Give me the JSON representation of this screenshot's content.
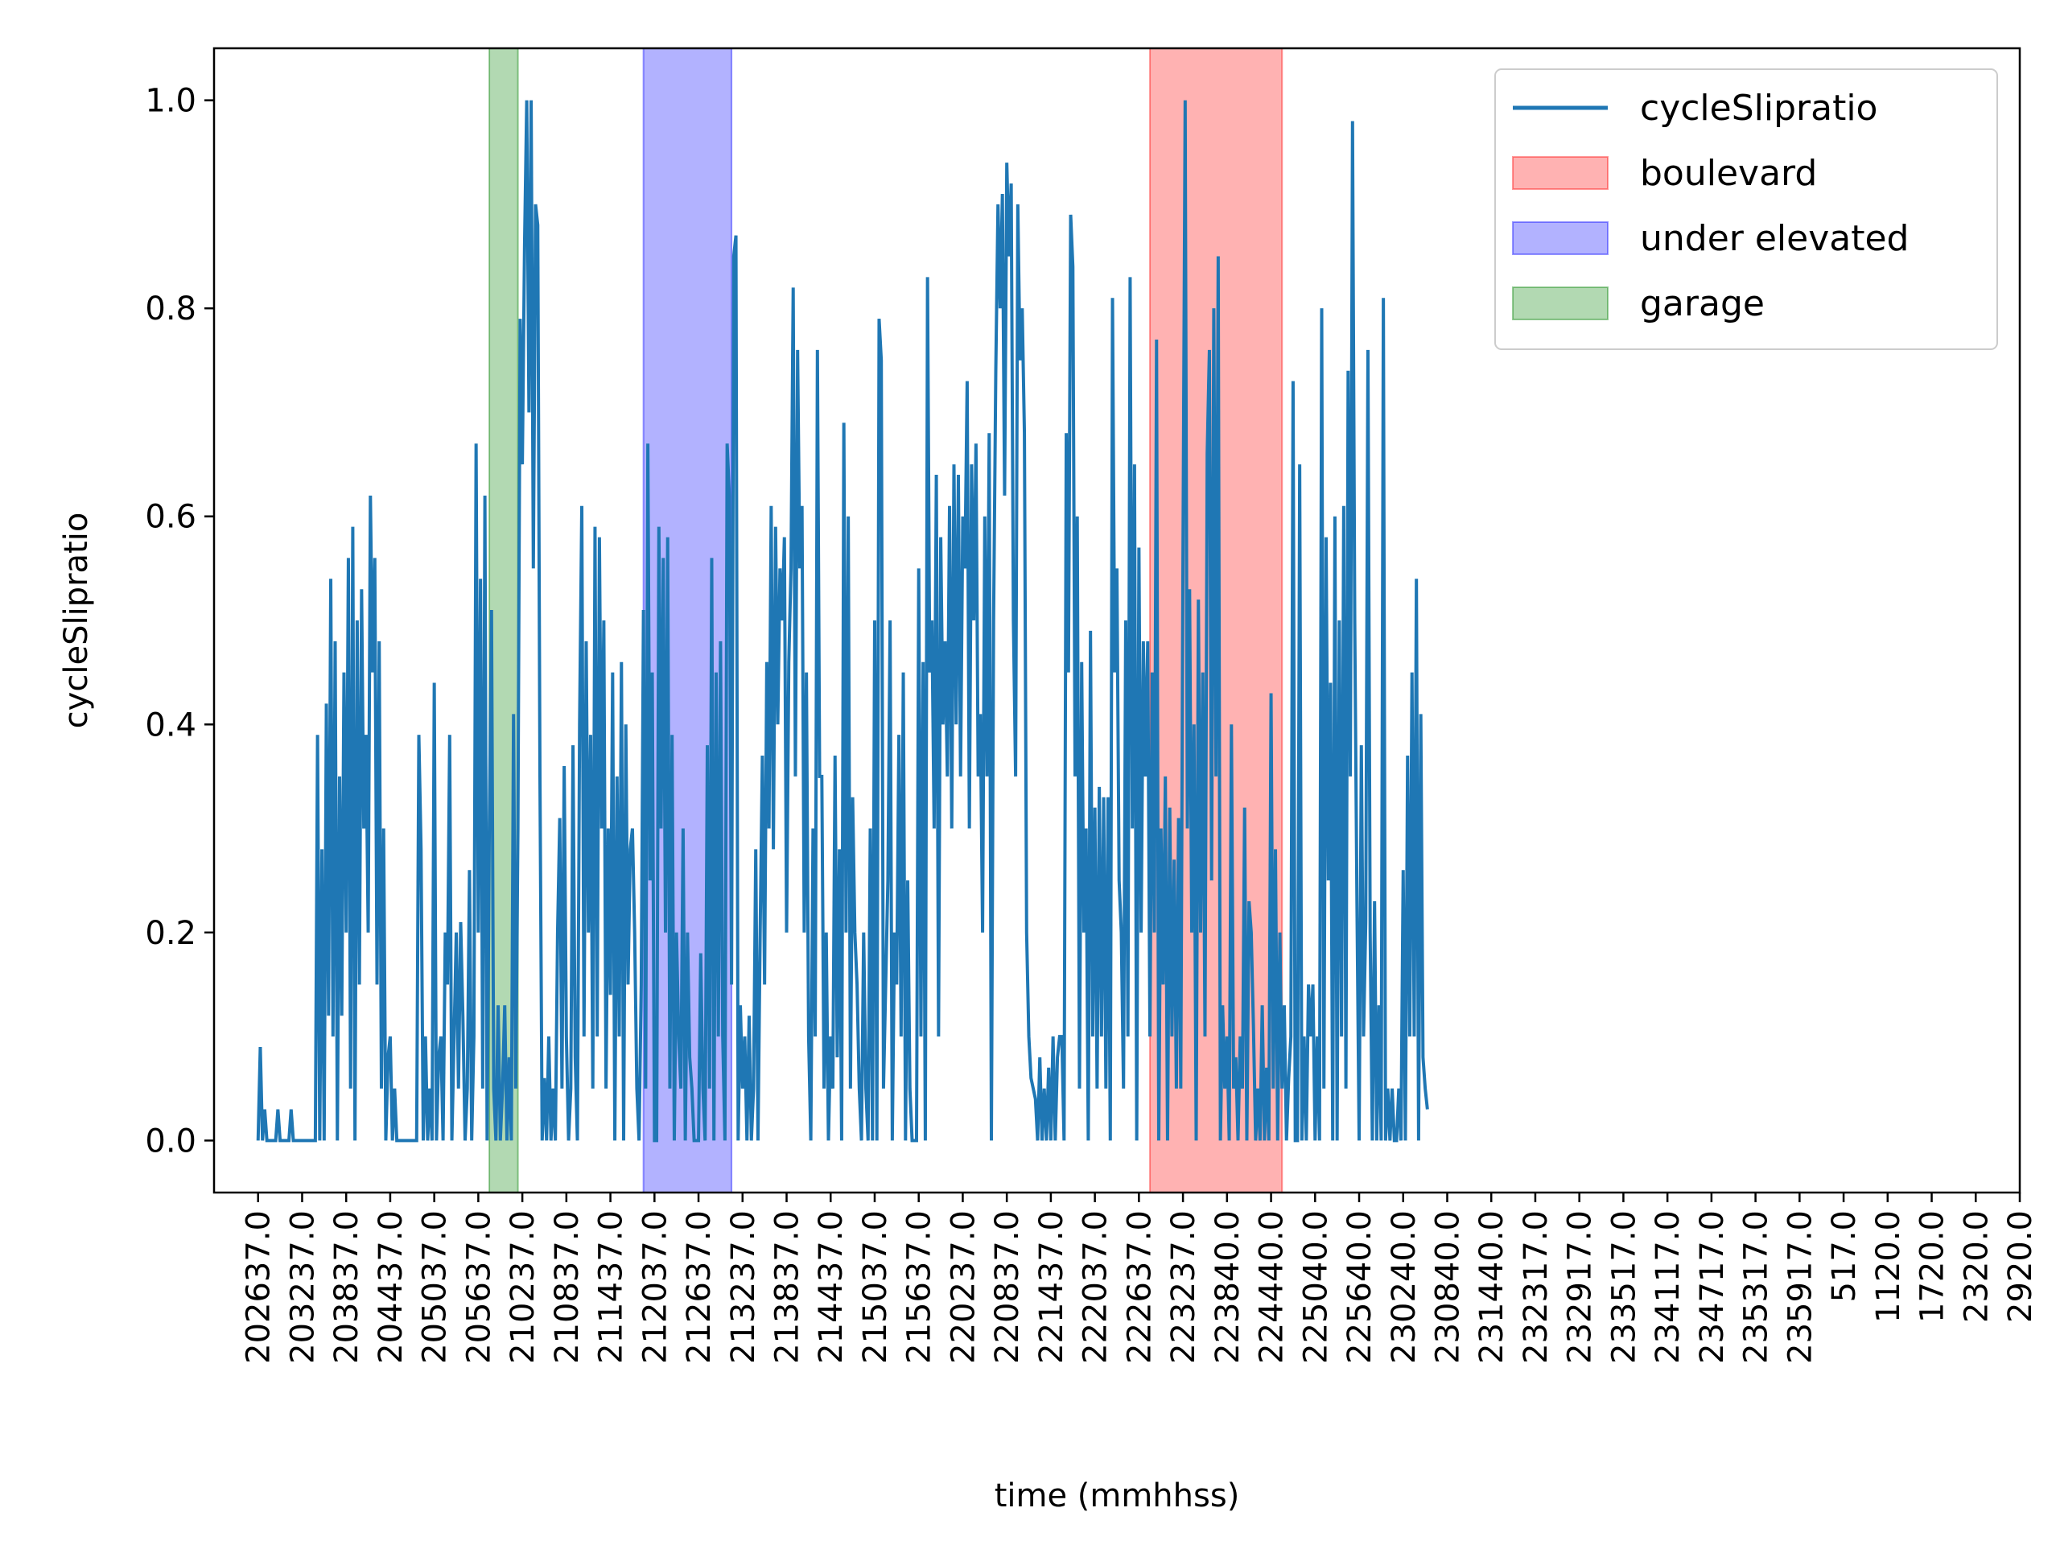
{
  "chart_data": {
    "type": "line",
    "title": "",
    "xlabel": "time (mmhhss)",
    "ylabel": "cycleSlipratio",
    "ylim": [
      -0.05,
      1.05
    ],
    "yticks": [
      "0.0",
      "0.2",
      "0.4",
      "0.6",
      "0.8",
      "1.0"
    ],
    "ytick_values": [
      0.0,
      0.2,
      0.4,
      0.6,
      0.8,
      1.0
    ],
    "xlim": [
      -2,
      80
    ],
    "xtick_labels": [
      "202637.0",
      "203237.0",
      "203837.0",
      "204437.0",
      "205037.0",
      "205637.0",
      "210237.0",
      "210837.0",
      "211437.0",
      "212037.0",
      "212637.0",
      "213237.0",
      "213837.0",
      "214437.0",
      "215037.0",
      "215637.0",
      "220237.0",
      "220837.0",
      "221437.0",
      "222037.0",
      "222637.0",
      "223237.0",
      "223840.0",
      "224440.0",
      "225040.0",
      "225640.0",
      "230240.0",
      "230840.0",
      "231440.0",
      "232317.0",
      "232917.0",
      "233517.0",
      "234117.0",
      "234717.0",
      "235317.0",
      "235917.0",
      "517.0",
      "1120.0",
      "1720.0",
      "2320.0",
      "2920.0"
    ],
    "grid": false,
    "legend_position": "upper right",
    "series": [
      {
        "name": "cycleSlipratio",
        "color": "#1f77b4",
        "x_start": 0.0,
        "x_step": 0.1,
        "values": [
          0,
          0.09,
          0.0,
          0.03,
          0.0,
          0.0,
          0.0,
          0.0,
          0.0,
          0.03,
          0.0,
          0.0,
          0.0,
          0.0,
          0.0,
          0.03,
          0.0,
          0.0,
          0.0,
          0.0,
          0.0,
          0.0,
          0.0,
          0.0,
          0.0,
          0.0,
          0.0,
          0.39,
          0.0,
          0.28,
          0.0,
          0.42,
          0.12,
          0.54,
          0.1,
          0.48,
          0.0,
          0.35,
          0.12,
          0.45,
          0.2,
          0.56,
          0.05,
          0.59,
          0.0,
          0.5,
          0.15,
          0.53,
          0.3,
          0.39,
          0.2,
          0.62,
          0.45,
          0.56,
          0.15,
          0.48,
          0.05,
          0.3,
          0.0,
          0.08,
          0.1,
          0.0,
          0.05,
          0.0,
          0.0,
          0.0,
          0.0,
          0.0,
          0.0,
          0.0,
          0.0,
          0.0,
          0.0,
          0.39,
          0.28,
          0.0,
          0.1,
          0.0,
          0.05,
          0.0,
          0.44,
          0.0,
          0.08,
          0.1,
          0.0,
          0.2,
          0.15,
          0.39,
          0.0,
          0.1,
          0.2,
          0.05,
          0.21,
          0.12,
          0.0,
          0.05,
          0.26,
          0.0,
          0.1,
          0.67,
          0.2,
          0.54,
          0.05,
          0.62,
          0.0,
          0.3,
          0.51,
          0.05,
          0.0,
          0.13,
          0.0,
          0.05,
          0.13,
          0.0,
          0.08,
          0.0,
          0.41,
          0.05,
          0.3,
          0.79,
          0.65,
          0.86,
          1.0,
          0.7,
          1.0,
          0.55,
          0.9,
          0.88,
          0.35,
          0.0,
          0.06,
          0.0,
          0.1,
          0.0,
          0.05,
          0.0,
          0.2,
          0.31,
          0.05,
          0.36,
          0.1,
          0.0,
          0.05,
          0.38,
          0.08,
          0.0,
          0.4,
          0.61,
          0.1,
          0.48,
          0.2,
          0.39,
          0.05,
          0.59,
          0.1,
          0.58,
          0.3,
          0.5,
          0.05,
          0.3,
          0.14,
          0.45,
          0.0,
          0.35,
          0.1,
          0.46,
          0.0,
          0.4,
          0.15,
          0.28,
          0.3,
          0.2,
          0.05,
          0.0,
          0.15,
          0.51,
          0.05,
          0.67,
          0.25,
          0.45,
          0.0,
          0.0,
          0.59,
          0.3,
          0.56,
          0.2,
          0.58,
          0.05,
          0.39,
          0.0,
          0.2,
          0.1,
          0.05,
          0.3,
          0.0,
          0.2,
          0.08,
          0.05,
          0.0,
          0.0,
          0.0,
          0.18,
          0.05,
          0.0,
          0.38,
          0.05,
          0.56,
          0.0,
          0.45,
          0.1,
          0.48,
          0.1,
          0.0,
          0.67,
          0.62,
          0.15,
          0.85,
          0.87,
          0.0,
          0.13,
          0.05,
          0.1,
          0.0,
          0.12,
          0.0,
          0.05,
          0.28,
          0.0,
          0.2,
          0.37,
          0.15,
          0.46,
          0.3,
          0.61,
          0.28,
          0.59,
          0.4,
          0.55,
          0.5,
          0.58,
          0.2,
          0.46,
          0.55,
          0.82,
          0.35,
          0.76,
          0.55,
          0.61,
          0.2,
          0.45,
          0.1,
          0.0,
          0.3,
          0.1,
          0.76,
          0.35,
          0.35,
          0.05,
          0.2,
          0.0,
          0.1,
          0.05,
          0.37,
          0.08,
          0.28,
          0.0,
          0.69,
          0.2,
          0.6,
          0.05,
          0.33,
          0.2,
          0.15,
          0.05,
          0.0,
          0.2,
          0.05,
          0.0,
          0.3,
          0.0,
          0.5,
          0.0,
          0.79,
          0.75,
          0.05,
          0.15,
          0.25,
          0.5,
          0.0,
          0.2,
          0.15,
          0.39,
          0.1,
          0.45,
          0.0,
          0.25,
          0.05,
          0.0,
          0.0,
          0.0,
          0.55,
          0.1,
          0.46,
          0.0,
          0.83,
          0.45,
          0.5,
          0.3,
          0.64,
          0.1,
          0.58,
          0.4,
          0.48,
          0.35,
          0.61,
          0.3,
          0.65,
          0.4,
          0.64,
          0.35,
          0.6,
          0.55,
          0.73,
          0.3,
          0.65,
          0.5,
          0.67,
          0.35,
          0.41,
          0.2,
          0.6,
          0.35,
          0.68,
          0.0,
          0.5,
          0.74,
          0.9,
          0.8,
          0.91,
          0.62,
          0.94,
          0.85,
          0.92,
          0.5,
          0.35,
          0.9,
          0.75,
          0.8,
          0.68,
          0.2,
          0.1,
          0.06,
          0.05,
          0.04,
          0.0,
          0.08,
          0.0,
          0.05,
          0.0,
          0.07,
          0.0,
          0.1,
          0.0,
          0.08,
          0.1,
          0.1,
          0.0,
          0.68,
          0.45,
          0.89,
          0.84,
          0.35,
          0.6,
          0.05,
          0.46,
          0.2,
          0.3,
          0.0,
          0.49,
          0.1,
          0.32,
          0.05,
          0.34,
          0.1,
          0.33,
          0.05,
          0.33,
          0.0,
          0.81,
          0.45,
          0.55,
          0.25,
          0.2,
          0.05,
          0.5,
          0.1,
          0.83,
          0.3,
          0.65,
          0.0,
          0.57,
          0.2,
          0.48,
          0.35,
          0.48,
          0.1,
          0.45,
          0.2,
          0.77,
          0.0,
          0.3,
          0.15,
          0.35,
          0.0,
          0.32,
          0.1,
          0.27,
          0.05,
          0.31,
          0.05,
          0.56,
          1.0,
          0.3,
          0.53,
          0.2,
          0.4,
          0.0,
          0.52,
          0.2,
          0.45,
          0.1,
          0.66,
          0.76,
          0.25,
          0.8,
          0.35,
          0.85,
          0.0,
          0.13,
          0.05,
          0.1,
          0.0,
          0.4,
          0.05,
          0.08,
          0.0,
          0.1,
          0.05,
          0.32,
          0.0,
          0.23,
          0.2,
          0.11,
          0.0,
          0.05,
          0.0,
          0.13,
          0.0,
          0.07,
          0.0,
          0.43,
          0.05,
          0.28,
          0.0,
          0.2,
          0.05,
          0.13,
          0.0,
          0.06,
          0.1,
          0.73,
          0.0,
          0.0,
          0.65,
          0.0,
          0.1,
          0.0,
          0.15,
          0.1,
          0.15,
          0.0,
          0.1,
          0.0,
          0.8,
          0.05,
          0.58,
          0.25,
          0.44,
          0.0,
          0.6,
          0.0,
          0.5,
          0.1,
          0.61,
          0.05,
          0.74,
          0.35,
          0.98,
          0.5,
          0.23,
          0.0,
          0.38,
          0.1,
          0.21,
          0.76,
          0.2,
          0.0,
          0.23,
          0.0,
          0.13,
          0.0,
          0.81,
          0.0,
          0.05,
          0.0,
          0.05,
          0.0,
          0.0,
          0.05,
          0.0,
          0.26,
          0.0,
          0.37,
          0.1,
          0.45,
          0.1,
          0.54,
          0.0,
          0.41,
          0.08,
          0.05,
          0.03
        ]
      }
    ],
    "spans": [
      {
        "name": "boulevard",
        "color": "#ff0000",
        "alpha": 0.3,
        "x0": 40.5,
        "x1": 46.5
      },
      {
        "name": "under elevated",
        "color": "#0000ff",
        "alpha": 0.3,
        "x0": 17.5,
        "x1": 21.5
      },
      {
        "name": "garage",
        "color": "#008000",
        "alpha": 0.3,
        "x0": 10.5,
        "x1": 11.8
      }
    ]
  }
}
